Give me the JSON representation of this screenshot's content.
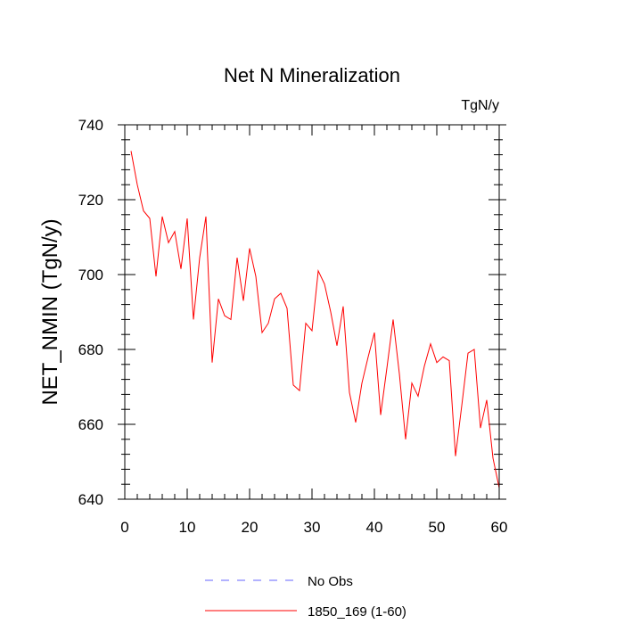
{
  "chart_data": {
    "type": "line",
    "title": "Net N Mineralization",
    "units_label": "TgN/y",
    "xlabel": "",
    "ylabel": "NET_NMIN  (TgN/y)",
    "xlim": [
      0,
      60
    ],
    "ylim": [
      640,
      740
    ],
    "xticks": [
      0,
      10,
      20,
      30,
      40,
      50,
      60
    ],
    "yticks": [
      640,
      660,
      680,
      700,
      720,
      740
    ],
    "x_minor_step": 2,
    "y_minor_step": 4,
    "series": [
      {
        "name": "1850_169 (1-60)",
        "color": "#ff0000",
        "x": [
          1,
          2,
          3,
          4,
          5,
          6,
          7,
          8,
          9,
          10,
          11,
          12,
          13,
          14,
          15,
          16,
          17,
          18,
          19,
          20,
          21,
          22,
          23,
          24,
          25,
          26,
          27,
          28,
          29,
          30,
          31,
          32,
          33,
          34,
          35,
          36,
          37,
          38,
          39,
          40,
          41,
          42,
          43,
          44,
          45,
          46,
          47,
          48,
          49,
          50,
          51,
          52,
          53,
          54,
          55,
          56,
          57,
          58,
          59,
          60
        ],
        "values": [
          733,
          724,
          717,
          715,
          699.5,
          715.5,
          708.5,
          711.5,
          701.5,
          715,
          688,
          704.5,
          715.5,
          676.5,
          693.5,
          689,
          688,
          704.5,
          693,
          707,
          699.5,
          684.5,
          687,
          693.5,
          695,
          691,
          670.5,
          669,
          687,
          685,
          701,
          697.5,
          690,
          681,
          691.5,
          668.5,
          660.5,
          671,
          678,
          684.5,
          662.5,
          675,
          688,
          673.5,
          656,
          671,
          667.5,
          675.5,
          681.5,
          676.5,
          678,
          677,
          651.5,
          665,
          679,
          680,
          659,
          666.5,
          651,
          643
        ]
      }
    ],
    "legend": [
      {
        "label": "No Obs",
        "color": "#6666ff",
        "style": "dashed"
      },
      {
        "label": "1850_169 (1-60)",
        "color": "#ff0000",
        "style": "solid"
      }
    ],
    "legend_position": "bottom-center",
    "grid": false
  }
}
